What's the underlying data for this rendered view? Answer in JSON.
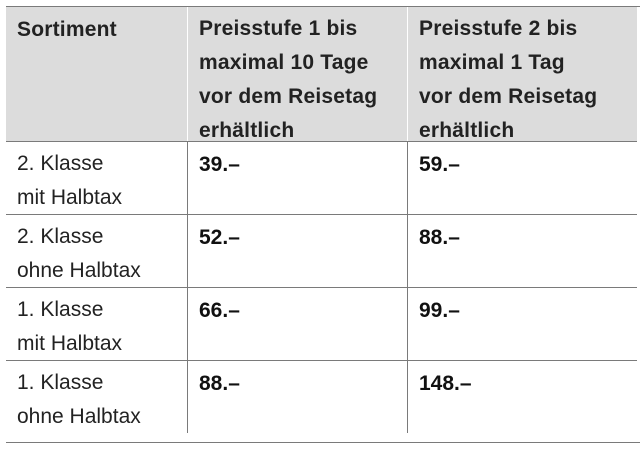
{
  "table": {
    "headers": [
      [
        "Sortiment"
      ],
      [
        "Preisstufe 1 bis",
        "maximal 10 Tage",
        "vor dem Reisetag",
        "erhältlich"
      ],
      [
        "Preisstufe 2 bis",
        "maximal 1 Tag",
        "vor dem Reisetag",
        "erhältlich"
      ]
    ],
    "rows": [
      {
        "sortiment": [
          "2. Klasse",
          "mit Halbtax"
        ],
        "preisstufe_1": "39.–",
        "preisstufe_2": "59.–"
      },
      {
        "sortiment": [
          "2. Klasse",
          "ohne Halbtax"
        ],
        "preisstufe_1": "52.–",
        "preisstufe_2": "88.–"
      },
      {
        "sortiment": [
          "1. Klasse",
          "mit Halbtax"
        ],
        "preisstufe_1": "66.–",
        "preisstufe_2": "99.–"
      },
      {
        "sortiment": [
          "1. Klasse",
          "ohne Halbtax"
        ],
        "preisstufe_1": "88.–",
        "preisstufe_2": "148.–"
      }
    ]
  }
}
